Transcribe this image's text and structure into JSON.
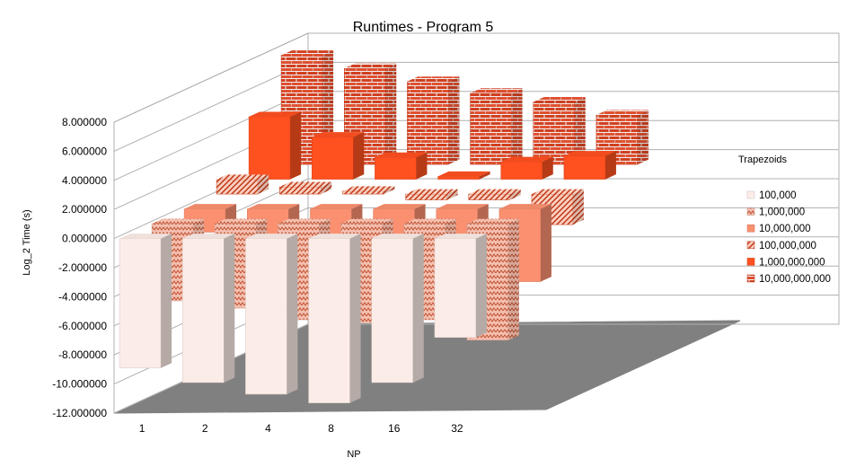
{
  "chart_data": {
    "type": "bar",
    "title": "Runtimes - Program 5",
    "xlabel": "NP",
    "ylabel": "Log_2 Time (s)",
    "ylim": [
      -12,
      8
    ],
    "yticks": [
      "8.000000",
      "6.000000",
      "4.000000",
      "2.000000",
      "0.000000",
      "-2.000000",
      "-4.000000",
      "-6.000000",
      "-8.000000",
      "-10.000000",
      "-12.000000"
    ],
    "categories": [
      "1",
      "2",
      "4",
      "8",
      "16",
      "32"
    ],
    "legend_title": "Trapezoids",
    "legend_position": "right",
    "series": [
      {
        "name": "100,000",
        "values": [
          -8.9,
          -9.9,
          -10.7,
          -11.3,
          -9.9,
          -6.8
        ],
        "color": "#fcece8",
        "pattern": "plain"
      },
      {
        "name": "1,000,000",
        "values": [
          -5.3,
          -5.8,
          -6.6,
          -6.8,
          -6.6,
          -8.0
        ],
        "color": "#f0b0a0",
        "pattern": "zigzag"
      },
      {
        "name": "10,000,000",
        "values": [
          -1.6,
          -2.0,
          -2.0,
          -2.0,
          -2.0,
          -5.0
        ],
        "color": "#fa9070",
        "pattern": "plain"
      },
      {
        "name": "100,000,000",
        "values": [
          1.0,
          0.5,
          0.2,
          -0.4,
          -0.4,
          -2.1
        ],
        "color": "#e84a20",
        "pattern": "checker"
      },
      {
        "name": "1,000,000,000",
        "values": [
          4.3,
          2.9,
          1.5,
          0.2,
          1.2,
          1.6
        ],
        "color": "#ff5020",
        "pattern": "plain"
      },
      {
        "name": "10,000,000,000",
        "values": [
          7.5,
          6.6,
          5.7,
          4.9,
          4.3,
          3.4
        ],
        "color": "#e04018",
        "pattern": "brick"
      }
    ]
  }
}
